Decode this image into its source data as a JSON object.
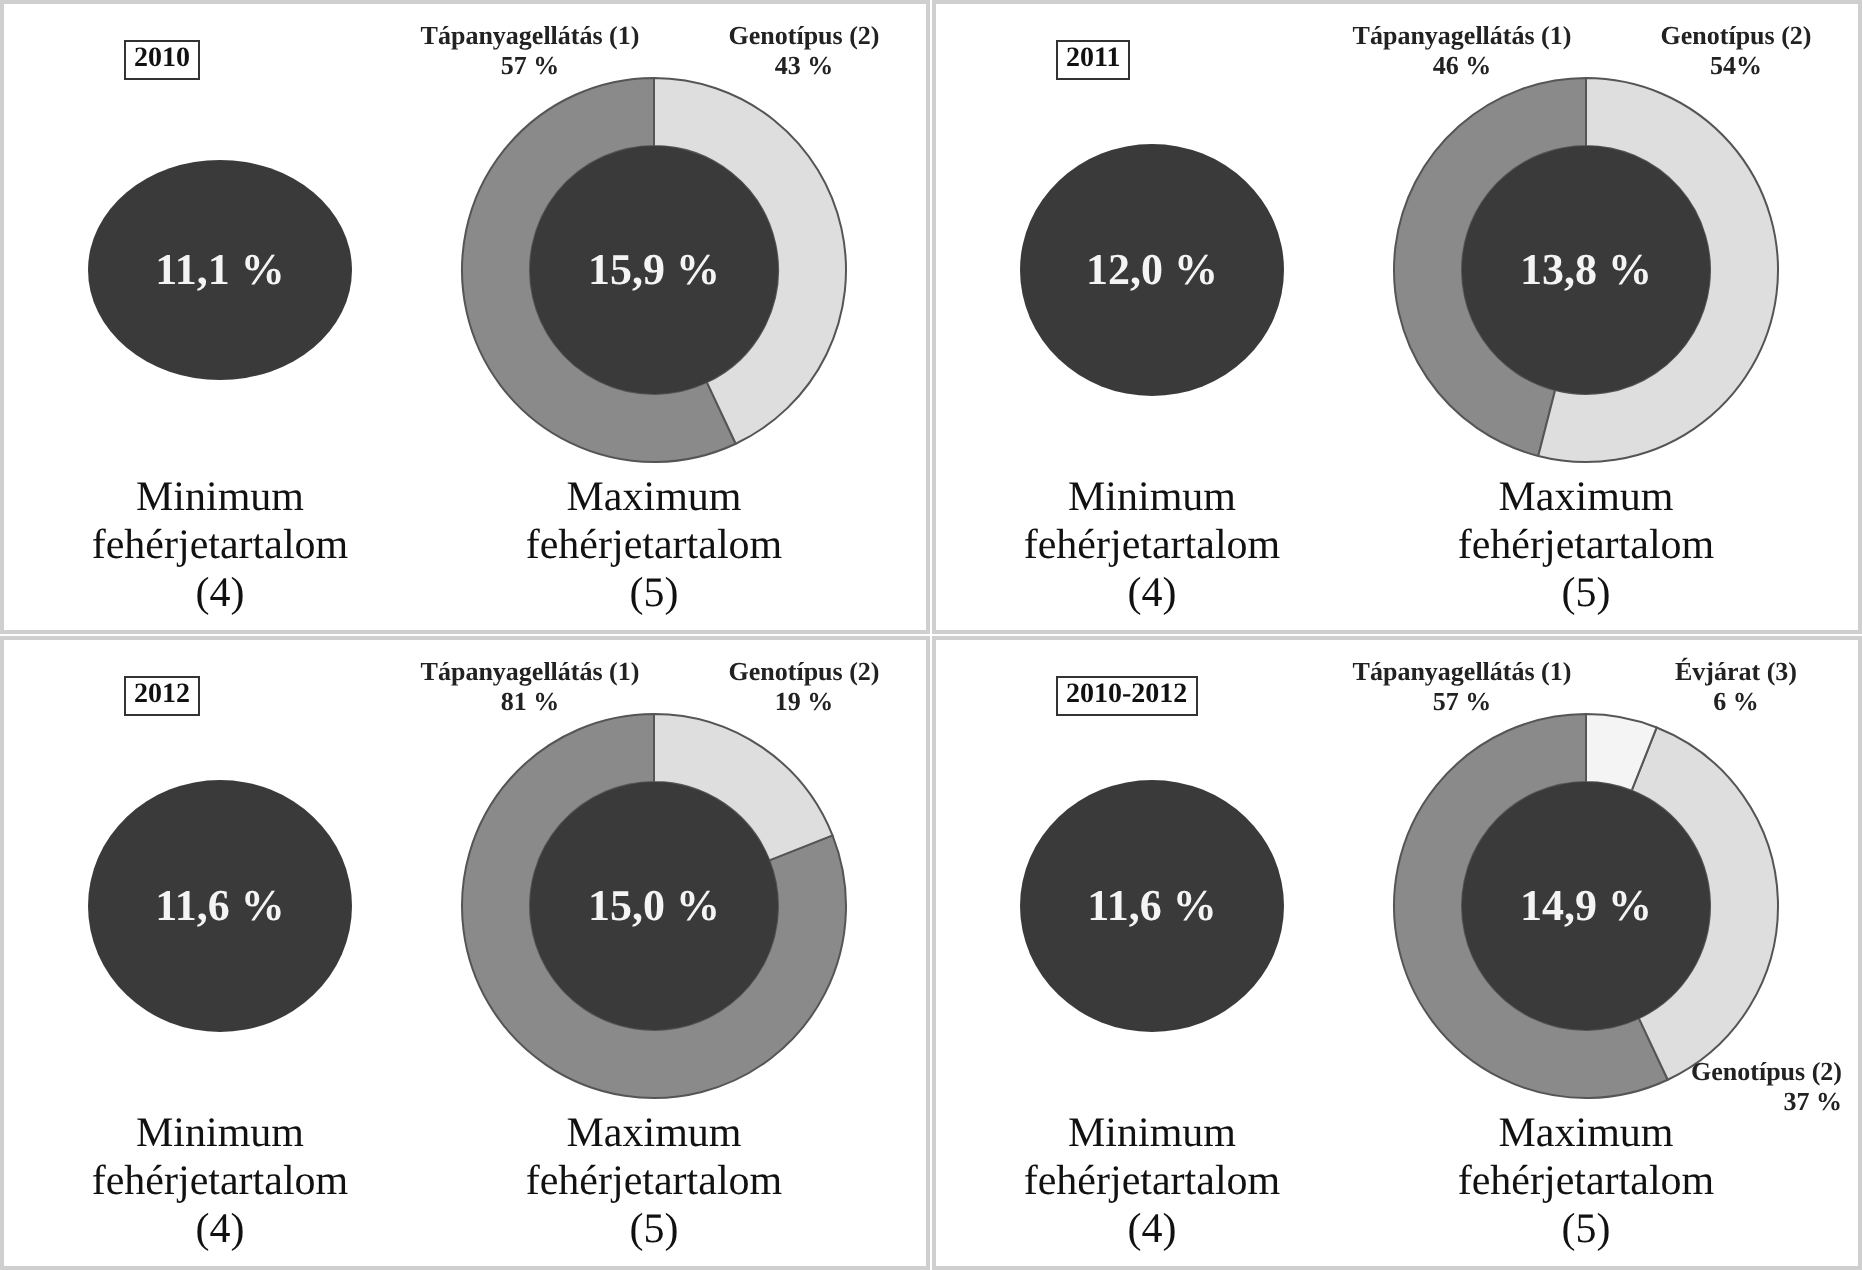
{
  "chart_data": [
    {
      "type": "donut",
      "title": "2010",
      "categories": [
        "Tápanyagellátás (1)",
        "Genotípus (2)"
      ],
      "values": [
        57,
        43
      ],
      "value_labels": [
        "57 %",
        "43 %"
      ],
      "colors": [
        "#8a8a8a",
        "#dedede"
      ],
      "annotations": [
        "11,1 %",
        "15,9 %",
        "Minimum\nfehérjetartalom\n(4)",
        "Maximum\nfehérjetartalom\n(5)"
      ]
    },
    {
      "type": "donut",
      "title": "2011",
      "categories": [
        "Tápanyagellátás (1)",
        "Genotípus (2)"
      ],
      "values": [
        46,
        54
      ],
      "value_labels": [
        "46 %",
        "54%"
      ],
      "colors": [
        "#8a8a8a",
        "#dedede"
      ],
      "annotations": [
        "12,0 %",
        "13,8 %",
        "Minimum\nfehérjetartalom\n(4)",
        "Maximum\nfehérjetartalom\n(5)"
      ]
    },
    {
      "type": "donut",
      "title": "2012",
      "categories": [
        "Tápanyagellátás (1)",
        "Genotípus (2)"
      ],
      "values": [
        81,
        19
      ],
      "value_labels": [
        "81 %",
        "19 %"
      ],
      "colors": [
        "#8a8a8a",
        "#dedede"
      ],
      "annotations": [
        "11,6 %",
        "15,0 %",
        "Minimum\nfehérjetartalom\n(4)",
        "Maximum\nfehérjetartalom\n(5)"
      ]
    },
    {
      "type": "donut",
      "title": "2010-2012",
      "categories": [
        "Tápanyagellátás (1)",
        "Genotípus (2)",
        "Évjárat (3)"
      ],
      "values": [
        57,
        37,
        6
      ],
      "value_labels": [
        "57 %",
        "37 %",
        "6 %"
      ],
      "colors": [
        "#8a8a8a",
        "#dedede",
        "#f4f4f4"
      ],
      "annotations": [
        "11,6 %",
        "14,9 %",
        "Minimum\nfehérjetartalom\n(4)",
        "Maximum\nfehérjetartalom\n(5)"
      ]
    }
  ]
}
